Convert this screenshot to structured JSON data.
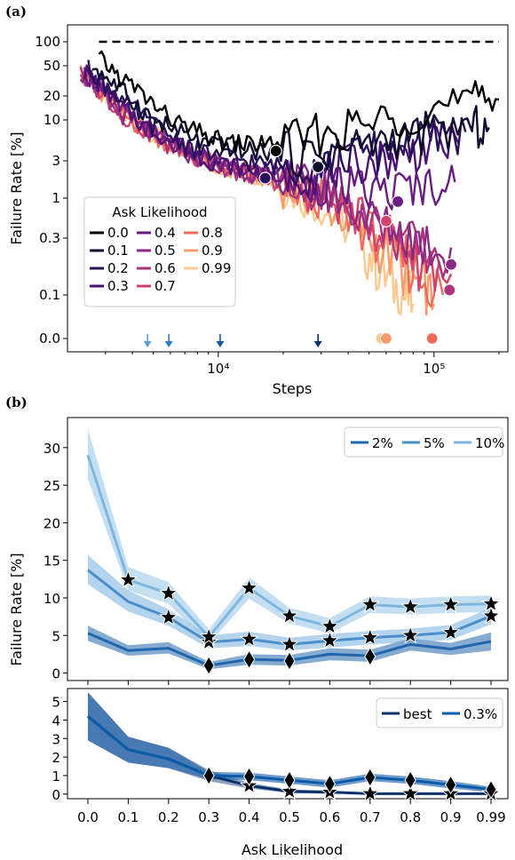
{
  "panel_a": {
    "label": "(a)",
    "xlabel": "Steps",
    "ylabel": "Failure Rate [%]",
    "yticks": [
      "0.0",
      "0.1",
      "0.3",
      "1",
      "3",
      "10",
      "20",
      "50",
      "100"
    ],
    "xticks": [
      "10⁴",
      "10⁵"
    ],
    "legend_title": "Ask Likelihood",
    "legend": [
      {
        "label": "0.0",
        "color": "#000004"
      },
      {
        "label": "0.1",
        "color": "#100c2f"
      },
      {
        "label": "0.2",
        "color": "#2a0f5a"
      },
      {
        "label": "0.3",
        "color": "#4b1174"
      },
      {
        "label": "0.4",
        "color": "#6a1d80"
      },
      {
        "label": "0.5",
        "color": "#892b85"
      },
      {
        "label": "0.6",
        "color": "#ab337c"
      },
      {
        "label": "0.7",
        "color": "#d2426b"
      },
      {
        "label": "0.8",
        "color": "#ef6a59"
      },
      {
        "label": "0.9",
        "color": "#f99a6b"
      },
      {
        "label": "0.99",
        "color": "#fcc98e"
      }
    ]
  },
  "panel_b": {
    "label": "(b)",
    "xlabel": "Ask Likelihood",
    "ylabel": "Failure Rate [%]",
    "categories": [
      "0.0",
      "0.1",
      "0.2",
      "0.3",
      "0.4",
      "0.5",
      "0.6",
      "0.7",
      "0.8",
      "0.9",
      "0.99"
    ],
    "top_yticks": [
      "0",
      "5",
      "10",
      "15",
      "20",
      "25",
      "30"
    ],
    "bottom_yticks": [
      "0",
      "1",
      "2",
      "3",
      "4",
      "5"
    ],
    "top_legend": [
      {
        "label": "2%",
        "color": "#2166ac"
      },
      {
        "label": "5%",
        "color": "#4a8fcb"
      },
      {
        "label": "10%",
        "color": "#7db7e0"
      }
    ],
    "bottom_legend": [
      {
        "label": "best",
        "color": "#08306b"
      },
      {
        "label": "0.3%",
        "color": "#0b5bab"
      }
    ]
  },
  "chart_data": [
    {
      "type": "line",
      "title": "",
      "xlabel": "Steps",
      "ylabel": "Failure Rate [%]",
      "xscale": "log",
      "xlim": [
        2000,
        220000
      ],
      "yscale": "symlog",
      "reference_line": {
        "y": 100,
        "style": "dashed",
        "color": "#000000"
      },
      "series": [
        {
          "name": "0.0",
          "x": [
            2800,
            3500,
            4500,
            5500,
            7000,
            9000,
            11000,
            14000,
            18000,
            25000,
            35000,
            50000,
            70000,
            100000,
            150000,
            200000
          ],
          "y": [
            60,
            35,
            20,
            12,
            8,
            6,
            5,
            5,
            5,
            6,
            7,
            9,
            11,
            14,
            17,
            18
          ],
          "marker": {
            "x": 18500,
            "y": 4
          }
        },
        {
          "name": "0.1",
          "x": [
            2600,
            3200,
            4000,
            5000,
            6500,
            8500,
            11000,
            14000,
            18000,
            25000,
            35000,
            50000,
            70000,
            100000,
            150000,
            180000
          ],
          "y": [
            50,
            30,
            17,
            10,
            7,
            5,
            4.5,
            4,
            4,
            3.5,
            4,
            5,
            6,
            7,
            8,
            8
          ],
          "marker": {
            "x": 29000,
            "y": 2.5
          }
        },
        {
          "name": "0.2",
          "x": [
            2500,
            3000,
            3800,
            4800,
            6200,
            8000,
            10500,
            13500,
            17000,
            22000,
            30000,
            40000,
            55000,
            75000,
            100000,
            140000
          ],
          "y": [
            45,
            28,
            15,
            9,
            6,
            4,
            3.5,
            3,
            2.6,
            2.6,
            3,
            3.5,
            4,
            5,
            6,
            7
          ],
          "marker": {
            "x": 16500,
            "y": 1.8
          }
        },
        {
          "name": "0.3",
          "x": [
            2400,
            2900,
            3600,
            4600,
            6000,
            7800,
            10000,
            13000,
            16000,
            21000,
            28000,
            38000,
            52000,
            72000,
            95000,
            130000
          ],
          "y": [
            42,
            26,
            14,
            8,
            5.5,
            3.5,
            2.8,
            2.4,
            2.2,
            2,
            2,
            2.5,
            3,
            3.5,
            4.5,
            5
          ],
          "marker": null
        },
        {
          "name": "0.4",
          "x": [
            2400,
            2900,
            3600,
            4600,
            6000,
            7800,
            10000,
            13000,
            16000,
            21000,
            28000,
            38000,
            52000,
            72000,
            95000,
            125000
          ],
          "y": [
            40,
            24,
            13,
            8,
            5,
            3.5,
            2.7,
            2.3,
            2,
            1.8,
            1.5,
            1.4,
            1.2,
            1.3,
            1.5,
            1.6
          ],
          "marker": {
            "x": 68000,
            "y": 0.9
          }
        },
        {
          "name": "0.5",
          "x": [
            2300,
            2800,
            3500,
            4500,
            5800,
            7500,
            9800,
            12500,
            15500,
            20000,
            27000,
            36000,
            48000,
            65000,
            85000,
            120000
          ],
          "y": [
            40,
            24,
            12,
            7.5,
            5,
            3.5,
            2.7,
            2.2,
            2,
            1.7,
            1.4,
            1,
            0.6,
            0.4,
            0.3,
            0.25
          ],
          "marker": {
            "x": 120000,
            "y": 0.18
          }
        },
        {
          "name": "0.6",
          "x": [
            2300,
            2800,
            3500,
            4500,
            5800,
            7500,
            9800,
            12500,
            15500,
            20000,
            27000,
            36000,
            48000,
            65000,
            85000,
            120000
          ],
          "y": [
            40,
            24,
            12,
            7.5,
            5,
            3.5,
            2.6,
            2.2,
            1.9,
            1.6,
            1.3,
            0.9,
            0.6,
            0.35,
            0.25,
            0.2
          ],
          "marker": {
            "x": 118000,
            "y": 0.11
          }
        },
        {
          "name": "0.7",
          "x": [
            2300,
            2800,
            3500,
            4500,
            5800,
            7500,
            9800,
            12500,
            15500,
            20000,
            27000,
            36000,
            48000,
            65000,
            85000,
            120000
          ],
          "y": [
            40,
            24,
            12,
            7.5,
            5,
            3.5,
            2.6,
            2.2,
            1.9,
            1.5,
            1.2,
            0.8,
            0.5,
            0.3,
            0.2,
            0.15
          ],
          "marker": {
            "x": 60000,
            "y": 0.5
          }
        },
        {
          "name": "0.8",
          "x": [
            2300,
            2800,
            3500,
            4500,
            5800,
            7500,
            9800,
            12500,
            15500,
            20000,
            27000,
            36000,
            48000,
            65000,
            85000,
            110000
          ],
          "y": [
            40,
            24,
            12,
            7.5,
            5,
            3.5,
            2.6,
            2.2,
            1.9,
            1.4,
            1.1,
            0.7,
            0.4,
            0.25,
            0.15,
            0.1
          ],
          "marker": {
            "x": 98000,
            "y": 0
          }
        },
        {
          "name": "0.9",
          "x": [
            2300,
            2800,
            3500,
            4500,
            5800,
            7500,
            9800,
            12500,
            15500,
            20000,
            27000,
            36000,
            48000,
            65000,
            85000,
            100000
          ],
          "y": [
            40,
            24,
            12,
            7.5,
            5,
            3.5,
            2.6,
            2.2,
            1.9,
            1.4,
            1,
            0.6,
            0.35,
            0.2,
            0.12,
            0.08
          ],
          "marker": {
            "x": 60000,
            "y": 0
          }
        },
        {
          "name": "0.99",
          "x": [
            2300,
            2800,
            3500,
            4500,
            5800,
            7500,
            9800,
            12500,
            15500,
            20000,
            27000,
            36000,
            48000,
            58000,
            70000,
            80000
          ],
          "y": [
            40,
            24,
            12,
            7.5,
            5,
            3.5,
            2.6,
            2.2,
            1.9,
            1.3,
            0.9,
            0.5,
            0.25,
            0.15,
            0.1,
            0.08
          ],
          "marker": {
            "x": 57000,
            "y": 0
          }
        }
      ],
      "arrows_at_steps": [
        4700,
        5900,
        10200,
        29000
      ]
    },
    {
      "type": "line",
      "title": "",
      "xlabel": "",
      "ylabel": "Failure Rate [%]",
      "categories": [
        "0.0",
        "0.1",
        "0.2",
        "0.3",
        "0.4",
        "0.5",
        "0.6",
        "0.7",
        "0.8",
        "0.9",
        "0.99"
      ],
      "ylim": [
        -1,
        34
      ],
      "series": [
        {
          "name": "2%",
          "values": [
            5.3,
            3,
            3.3,
            1,
            1.8,
            1.7,
            2.5,
            2.3,
            3.8,
            3.2,
            4.2
          ],
          "band": [
            [
              4.3,
              6.3
            ],
            [
              2.3,
              3.7
            ],
            [
              2.6,
              4.1
            ],
            [
              0.5,
              1.5
            ],
            [
              1.1,
              2.5
            ],
            [
              1,
              2.4
            ],
            [
              1.7,
              3.3
            ],
            [
              1.5,
              3.1
            ],
            [
              3,
              4.6
            ],
            [
              2.4,
              4
            ],
            [
              3,
              5.4
            ]
          ],
          "markers": [
            null,
            null,
            null,
            1,
            1.8,
            1.6,
            null,
            2.2,
            null,
            null,
            null
          ]
        },
        {
          "name": "5%",
          "values": [
            13.7,
            9.5,
            7.4,
            4.1,
            4.5,
            3.8,
            4.3,
            4.7,
            5,
            5.4,
            7.6
          ],
          "band": [
            [
              11.8,
              15.7
            ],
            [
              8.2,
              11
            ],
            [
              6.3,
              8.5
            ],
            [
              3.3,
              5
            ],
            [
              3.6,
              5.5
            ],
            [
              3,
              4.7
            ],
            [
              3.4,
              5.2
            ],
            [
              3.8,
              5.6
            ],
            [
              4.1,
              5.9
            ],
            [
              4.4,
              6.4
            ],
            [
              6.5,
              8.7
            ]
          ],
          "markers": [
            null,
            null,
            7.4,
            4.1,
            4.5,
            3.8,
            4.3,
            4.7,
            5,
            5.4,
            7.6
          ]
        },
        {
          "name": "10%",
          "values": [
            29,
            12.4,
            10.6,
            4.8,
            11.3,
            7.6,
            6.2,
            9.1,
            8.8,
            9.1,
            9.2
          ],
          "band": [
            [
              25.8,
              32.5
            ],
            [
              11,
              14.1
            ],
            [
              9.2,
              12.1
            ],
            [
              3.9,
              5.8
            ],
            [
              9.9,
              12.7
            ],
            [
              6.6,
              8.7
            ],
            [
              5.3,
              7.3
            ],
            [
              8,
              10.2
            ],
            [
              7.8,
              9.9
            ],
            [
              8,
              10.2
            ],
            [
              8.1,
              10.3
            ]
          ],
          "markers": [
            null,
            12.4,
            10.6,
            4.8,
            11.3,
            7.6,
            6.2,
            9.1,
            8.8,
            9.1,
            9.2
          ]
        }
      ]
    },
    {
      "type": "line",
      "title": "",
      "xlabel": "Ask Likelihood",
      "ylabel": "",
      "categories": [
        "0.0",
        "0.1",
        "0.2",
        "0.3",
        "0.4",
        "0.5",
        "0.6",
        "0.7",
        "0.8",
        "0.9",
        "0.99"
      ],
      "ylim": [
        -0.25,
        5.7
      ],
      "series": [
        {
          "name": "best",
          "values": [
            4.2,
            2.4,
            1.9,
            1,
            0.45,
            0.15,
            0.1,
            0.02,
            0.02,
            0.02,
            0.02
          ],
          "band": [
            [
              2.9,
              5.5
            ],
            [
              1.7,
              3.1
            ],
            [
              1.4,
              2.5
            ],
            [
              0.7,
              1.3
            ],
            [
              0.3,
              0.6
            ],
            [
              0.05,
              0.25
            ],
            [
              0.02,
              0.2
            ],
            [
              0,
              0.05
            ],
            [
              0,
              0.05
            ],
            [
              0,
              0.05
            ],
            [
              0,
              0.05
            ]
          ],
          "markers": [
            null,
            null,
            null,
            null,
            0.45,
            0.15,
            0.1,
            0.02,
            0.02,
            0.02,
            0.02
          ]
        },
        {
          "name": "0.3%",
          "values": [
            4.2,
            2.4,
            1.9,
            1,
            0.95,
            0.75,
            0.55,
            0.9,
            0.75,
            0.5,
            0.25
          ],
          "band": [
            [
              2.9,
              5.5
            ],
            [
              1.7,
              3.1
            ],
            [
              1.4,
              2.5
            ],
            [
              0.8,
              1.2
            ],
            [
              0.75,
              1.15
            ],
            [
              0.55,
              0.95
            ],
            [
              0.35,
              0.75
            ],
            [
              0.7,
              1.1
            ],
            [
              0.55,
              0.95
            ],
            [
              0.3,
              0.7
            ],
            [
              0.1,
              0.4
            ]
          ],
          "markers": [
            null,
            null,
            null,
            1,
            0.95,
            0.75,
            0.55,
            0.9,
            0.75,
            0.5,
            0.25
          ]
        }
      ]
    }
  ]
}
